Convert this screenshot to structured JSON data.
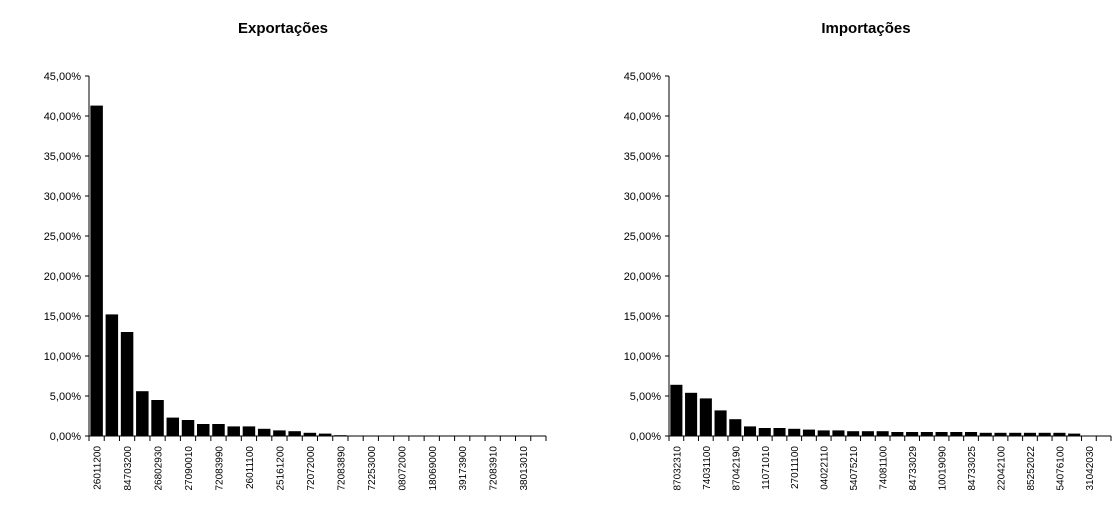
{
  "chart_data": [
    {
      "type": "bar",
      "title": "Exportações",
      "xlabel": "",
      "ylabel": "",
      "ylim": [
        0,
        0.45
      ],
      "yticks": [
        "0,00%",
        "5,00%",
        "10,00%",
        "15,00%",
        "20,00%",
        "25,00%",
        "30,00%",
        "35,00%",
        "40,00%",
        "45,00%"
      ],
      "grid": false,
      "categories": [
        "26011200",
        "",
        "84703200",
        "",
        "26802930",
        "",
        "27090010",
        "",
        "72083990",
        "",
        "26011100",
        "",
        "25161200",
        "",
        "72072000",
        "",
        "72083890",
        "",
        "72253000",
        "",
        "08072000",
        "",
        "18069000",
        "",
        "39173900",
        "",
        "72083910",
        "",
        "38013010",
        ""
      ],
      "values": [
        0.413,
        0.152,
        0.13,
        0.056,
        0.045,
        0.023,
        0.02,
        0.015,
        0.015,
        0.012,
        0.012,
        0.009,
        0.007,
        0.006,
        0.004,
        0.003,
        0.001,
        0.0005,
        0.0004,
        0.0003,
        0.0003,
        0.0002,
        0.0002,
        0.0002,
        0.0001,
        0.0001,
        0.0001,
        0.0001,
        0.0001,
        0.0001
      ]
    },
    {
      "type": "bar",
      "title": "Importações",
      "xlabel": "",
      "ylabel": "",
      "ylim": [
        0,
        0.45
      ],
      "yticks": [
        "0,00%",
        "5,00%",
        "10,00%",
        "15,00%",
        "20,00%",
        "25,00%",
        "30,00%",
        "35,00%",
        "40,00%",
        "45,00%"
      ],
      "grid": false,
      "categories": [
        "87032310",
        "",
        "74031100",
        "",
        "87042190",
        "",
        "11071010",
        "",
        "27011100",
        "",
        "04022110",
        "",
        "54075210",
        "",
        "74081100",
        "",
        "84733029",
        "",
        "10019090",
        "",
        "84733025",
        "",
        "22042100",
        "",
        "85252022",
        "",
        "54076100",
        "",
        "31042030",
        ""
      ],
      "values": [
        0.064,
        0.054,
        0.047,
        0.032,
        0.021,
        0.012,
        0.01,
        0.01,
        0.009,
        0.008,
        0.007,
        0.007,
        0.006,
        0.006,
        0.006,
        0.005,
        0.005,
        0.005,
        0.005,
        0.005,
        0.005,
        0.004,
        0.004,
        0.004,
        0.004,
        0.004,
        0.004,
        0.003,
        0.0,
        0.0
      ]
    }
  ]
}
